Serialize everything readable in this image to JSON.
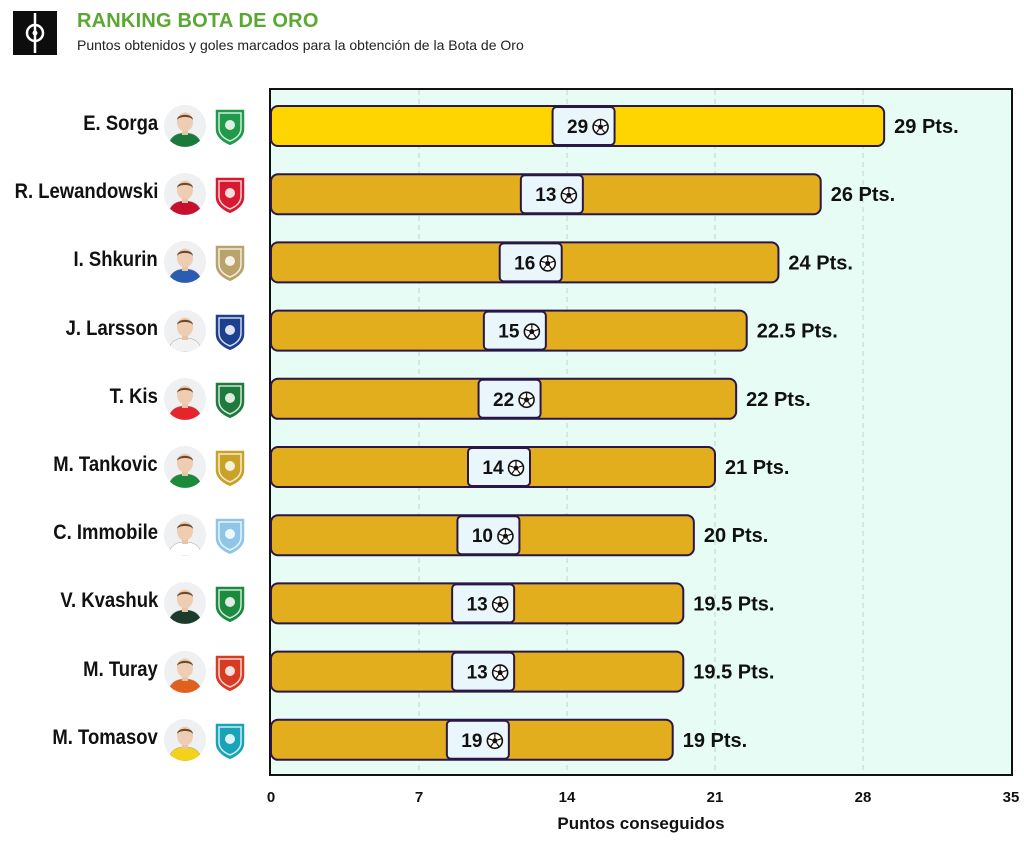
{
  "header": {
    "title": "RANKING BOTA DE ORO",
    "subtitle": "Puntos obtenidos y goles marcados para la obtención de la Bota de Oro",
    "logo_icon": "football-pitch-logo-icon"
  },
  "chart_data": {
    "type": "bar",
    "orientation": "horizontal",
    "categories": [
      "E. Sorga",
      "R. Lewandowski",
      "I. Shkurin",
      "J. Larsson",
      "T. Kis",
      "M. Tankovic",
      "C. Immobile",
      "V. Kvashuk",
      "M. Turay",
      "M. Tomasov"
    ],
    "values": [
      29,
      26,
      24,
      22.5,
      22,
      21,
      20,
      19.5,
      19.5,
      19
    ],
    "value_labels": [
      "29 Pts.",
      "26 Pts.",
      "24 Pts.",
      "22.5 Pts.",
      "22 Pts.",
      "21 Pts.",
      "20 Pts.",
      "19.5 Pts.",
      "19.5 Pts.",
      "19 Pts."
    ],
    "goals": [
      29,
      13,
      16,
      15,
      22,
      14,
      10,
      13,
      13,
      19
    ],
    "goal_icon": "soccer-ball-icon",
    "xlabel": "Puntos conseguidos",
    "xlim": [
      0,
      35
    ],
    "xticks": [
      0,
      7,
      14,
      21,
      28,
      35
    ],
    "xtick_labels": [
      "0",
      "7",
      "14",
      "21",
      "28",
      "35"
    ],
    "grid": "vertical dashed",
    "colors": {
      "leader_bar": "#ffd500",
      "bar": "#e3ae1e",
      "bar_border": "#2b1747",
      "goal_box": "#e9f6fb",
      "plot_background": "#e6fcf4",
      "title": "#5aa832"
    }
  },
  "rows": [
    {
      "name": "E. Sorga",
      "avatar": "player-avatar-icon",
      "club_icon": "fc-flora-crest-icon",
      "club_color": "#1f9a4a",
      "kit_color": "#1a7a3c"
    },
    {
      "name": "R. Lewandowski",
      "avatar": "player-avatar-icon",
      "club_icon": "fc-bayern-munchen-crest-icon",
      "club_color": "#d8192f",
      "kit_color": "#c8102e"
    },
    {
      "name": "I. Shkurin",
      "avatar": "player-avatar-icon",
      "club_icon": "dinamo-brest-crest-icon",
      "club_color": "#b9a36a",
      "kit_color": "#2a5db0"
    },
    {
      "name": "J. Larsson",
      "avatar": "player-avatar-icon",
      "club_icon": "ifk-norrkoping-crest-icon",
      "club_color": "#1d3f8f",
      "kit_color": "#f2f2f2"
    },
    {
      "name": "T. Kis",
      "avatar": "player-avatar-icon",
      "club_icon": "zalgiris-crest-icon",
      "club_color": "#1e7b3d",
      "kit_color": "#e6242c"
    },
    {
      "name": "M. Tankovic",
      "avatar": "player-avatar-icon",
      "club_icon": "hammarby-crest-icon",
      "club_color": "#c9a227",
      "kit_color": "#1b8a3a"
    },
    {
      "name": "C. Immobile",
      "avatar": "player-avatar-icon",
      "club_icon": "lazio-eagle-crest-icon",
      "club_color": "#8fc6e8",
      "kit_color": "#ffffff"
    },
    {
      "name": "V. Kvashuk",
      "avatar": "player-avatar-icon",
      "club_icon": "fk-zalgiris-green-crest-icon",
      "club_color": "#1c8a3f",
      "kit_color": "#1d3b2b"
    },
    {
      "name": "M. Turay",
      "avatar": "player-avatar-icon",
      "club_icon": "djurgarden-crest-icon",
      "club_color": "#d83a22",
      "kit_color": "#e0601c"
    },
    {
      "name": "M. Tomasov",
      "avatar": "player-avatar-icon",
      "club_icon": "fc-astana-crest-icon",
      "club_color": "#18a3b8",
      "kit_color": "#f3d21b"
    }
  ]
}
